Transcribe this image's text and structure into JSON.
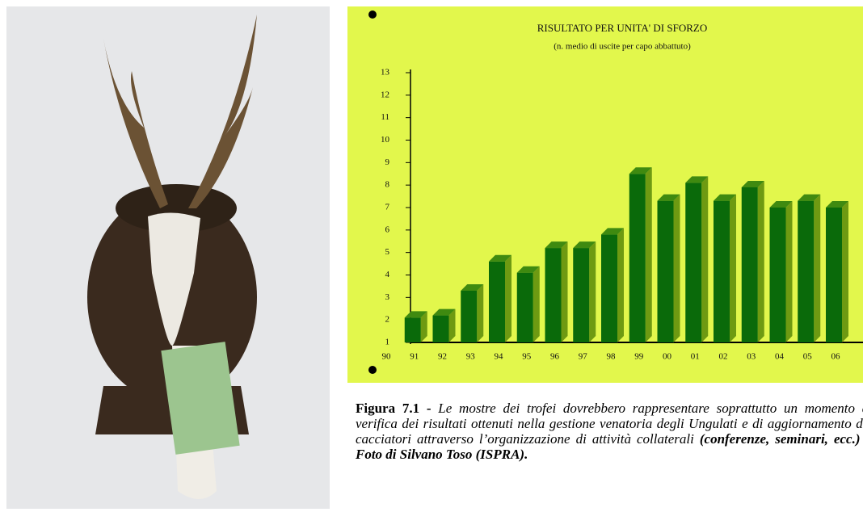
{
  "chart_data": {
    "type": "bar",
    "title": "RISULTATO PER UNITA' DI SFORZO",
    "subtitle": "(n. medio di uscite per capo abbattuto)",
    "categories": [
      "90",
      "91",
      "92",
      "93",
      "94",
      "95",
      "96",
      "97",
      "98",
      "99",
      "00",
      "01",
      "02",
      "03",
      "04",
      "05",
      "06"
    ],
    "values": [
      null,
      2.1,
      2.2,
      3.3,
      4.6,
      4.1,
      5.2,
      5.2,
      5.8,
      8.5,
      7.3,
      8.1,
      7.3,
      7.9,
      7.0,
      7.3,
      7.0
    ],
    "color": "#0a6a0a",
    "ylim": [
      1,
      13
    ],
    "yticks": [
      1,
      2,
      3,
      4,
      5,
      6,
      7,
      8,
      9,
      10,
      11,
      12,
      13
    ],
    "grid": false
  },
  "caption": {
    "label": "Figura 7.1 -",
    "text": "Le mostre dei trofei dovrebbero rappresentare soprattutto un momento di verifica dei risultati ottenuti nella gestione venatoria degli Ungulati e di aggiornamento dei cacciatori attraverso l’organizzazione di attività collaterali",
    "credit": "(conferenze, seminari, ecc.) – Foto di Silvano Toso (ISPRA)."
  }
}
